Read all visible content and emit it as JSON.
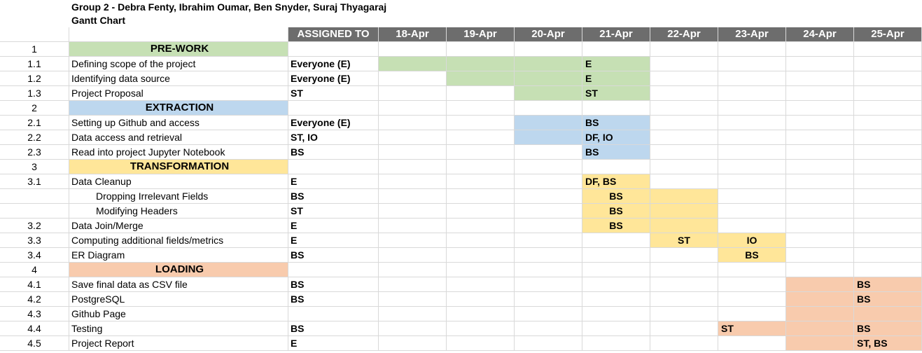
{
  "title": {
    "group_line": "Group 2 - Debra Fenty, Ibrahim Oumar, Ben Snyder, Suraj Thyagaraj",
    "chart_line": "Gantt Chart"
  },
  "header": {
    "assigned_to": "ASSIGNED TO",
    "days": [
      "18-Apr",
      "19-Apr",
      "20-Apr",
      "21-Apr",
      "22-Apr",
      "23-Apr",
      "24-Apr",
      "25-Apr"
    ]
  },
  "colors": {
    "header": "#6d6d6d",
    "pre_work": "#c6e0b4",
    "extraction": "#bdd7ee",
    "transformation": "#ffe699",
    "loading": "#f8cbad",
    "gridline": "#d9d9d9"
  },
  "rows": [
    {
      "num": "1",
      "task": "PRE-WORK",
      "assigned": "",
      "section": true
    },
    {
      "num": "1.1",
      "task": "Defining scope of the project",
      "assigned": "Everyone (E)",
      "bar_label": "E"
    },
    {
      "num": "1.2",
      "task": "Identifying data source",
      "assigned": "Everyone (E)",
      "bar_label": "E"
    },
    {
      "num": "1.3",
      "task": "Project Proposal",
      "assigned": "ST",
      "bar_label": "ST"
    },
    {
      "num": "2",
      "task": "EXTRACTION",
      "assigned": "",
      "section": true
    },
    {
      "num": "2.1",
      "task": "Setting up Github and access",
      "assigned": "Everyone (E)",
      "bar_label": "BS"
    },
    {
      "num": "2.2",
      "task": "Data access and retrieval",
      "assigned": "ST, IO",
      "bar_label": "DF, IO"
    },
    {
      "num": "2.3",
      "task": "Read into project Jupyter Notebook",
      "assigned": "BS",
      "bar_label": "BS"
    },
    {
      "num": "3",
      "task": "TRANSFORMATION",
      "assigned": "",
      "section": true
    },
    {
      "num": "3.1",
      "task": "Data Cleanup",
      "assigned": "E",
      "bar_label": "DF, BS"
    },
    {
      "num": "",
      "task": "Dropping Irrelevant Fields",
      "assigned": "BS",
      "bar_label": "BS"
    },
    {
      "num": "",
      "task": "Modifying Headers",
      "assigned": "ST",
      "bar_label": "BS"
    },
    {
      "num": "3.2",
      "task": "Data Join/Merge",
      "assigned": "E",
      "bar_label": "BS"
    },
    {
      "num": "3.3",
      "task": "Computing additional fields/metrics",
      "assigned": "E",
      "bar_label": "ST",
      "bar_label_2": "IO"
    },
    {
      "num": "3.4",
      "task": "ER Diagram",
      "assigned": "BS",
      "bar_label": "BS"
    },
    {
      "num": "4",
      "task": "LOADING",
      "assigned": "",
      "section": true
    },
    {
      "num": "4.1",
      "task": "Save final data as CSV file",
      "assigned": "BS",
      "bar_label": "BS"
    },
    {
      "num": "4.2",
      "task": "PostgreSQL",
      "assigned": "BS",
      "bar_label": "BS"
    },
    {
      "num": "4.3",
      "task": "Github Page",
      "assigned": "",
      "bar_label": ""
    },
    {
      "num": "4.4",
      "task": "Testing",
      "assigned": "BS",
      "bar_label": "ST",
      "bar_label_2": "BS"
    },
    {
      "num": "4.5",
      "task": "Project Report",
      "assigned": "E",
      "bar_label": "ST, BS"
    }
  ]
}
